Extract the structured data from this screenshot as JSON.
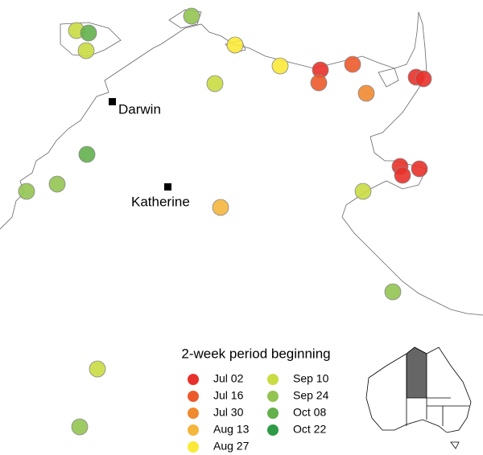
{
  "places": [
    {
      "label": "Darwin"
    },
    {
      "label": "Katherine"
    }
  ],
  "legend": {
    "title": "2-week period beginning",
    "entries": [
      {
        "label": "Jul 02",
        "color": "#e8312a"
      },
      {
        "label": "Jul 16",
        "color": "#ec5a2b"
      },
      {
        "label": "Jul 30",
        "color": "#f08a30"
      },
      {
        "label": "Aug 13",
        "color": "#f5b63e"
      },
      {
        "label": "Aug 27",
        "color": "#fbe93a"
      },
      {
        "label": "Sep 10",
        "color": "#c9dc43"
      },
      {
        "label": "Sep 24",
        "color": "#93c452"
      },
      {
        "label": "Oct 08",
        "color": "#63b04c"
      },
      {
        "label": "Oct 22",
        "color": "#2e9a45"
      }
    ]
  }
}
